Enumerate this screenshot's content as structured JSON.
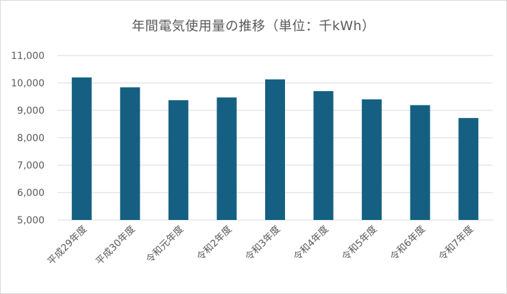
{
  "chart_data": {
    "type": "bar",
    "title": "年間電気使用量の推移（単位：千kWh）",
    "categories": [
      "平成29年度",
      "平成30年度",
      "令和元年度",
      "令和2年度",
      "令和3年度",
      "令和4年度",
      "令和5年度",
      "令和6年度",
      "令和7年度"
    ],
    "values": [
      10200,
      9840,
      9370,
      9470,
      10130,
      9700,
      9400,
      9190,
      8720
    ],
    "ylim": [
      5000,
      11000
    ],
    "yticks": [
      5000,
      6000,
      7000,
      8000,
      9000,
      10000,
      11000
    ],
    "ytick_labels": [
      "5,000",
      "6,000",
      "7,000",
      "8,000",
      "9,000",
      "10,000",
      "11,000"
    ],
    "bar_color": "#156082",
    "grid": true,
    "legend": "none"
  }
}
